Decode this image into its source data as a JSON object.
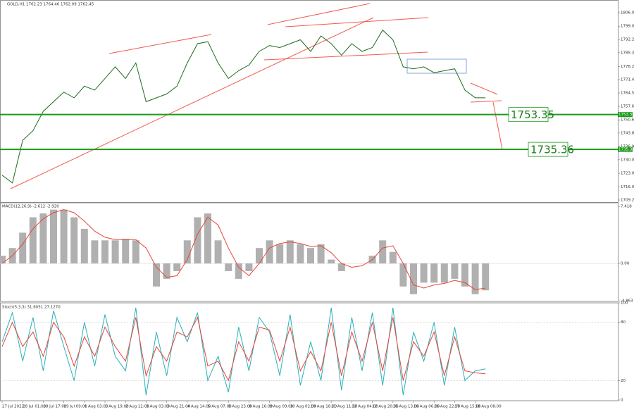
{
  "chart_data": [
    {
      "type": "line",
      "title": "GOLD,H1  1762.23 1764.46 1762.09 1762.45",
      "categories": [
        "27 Jul 2022",
        null,
        "28 Jul 01:00",
        null,
        "28 Jul 17:00",
        null,
        "29 Jul 09:00",
        null,
        "1 Aug 03:00",
        null,
        "1 Aug 19:00",
        null,
        "2 Aug 12:00",
        null,
        "3 Aug 03:00",
        null,
        "3 Aug 21:00",
        null,
        "4 Aug 14:00",
        null,
        "5 Aug 07:00",
        null,
        "5 Aug 23:00",
        null,
        "8 Aug 16:00",
        null,
        "9 Aug 09:00",
        null,
        "10 Aug 02:00",
        null,
        "10 Aug 18:00",
        null,
        "11 Aug 11:00",
        null,
        "12 Aug 04:00",
        null,
        "12 Aug 20:00",
        null,
        "15 Aug 13:00",
        null,
        "16 Aug 06:00",
        null,
        "16 Aug 22:00",
        null,
        "17 Aug 15:00",
        null,
        "18 Aug 08:00",
        null
      ],
      "series": [
        {
          "color": "#1f6b1f",
          "values": [
            1722,
            1718,
            1740,
            1745,
            1755,
            1760,
            1765,
            1762,
            1768,
            1766,
            1772,
            1778,
            1772,
            1780,
            1760,
            1762,
            1764,
            1768,
            1780,
            1790,
            1791,
            1780,
            1772,
            1776,
            1779,
            1786,
            1789,
            1788,
            1790,
            1792,
            1786,
            1794,
            1790,
            1784,
            1790,
            1786,
            1788,
            1797,
            1792,
            1778,
            1777,
            1778,
            1775,
            1776,
            1777,
            1766,
            1762,
            1762
          ]
        }
      ],
      "levels": [
        1753.35,
        1735.36
      ],
      "level_color": "#1a9a1a",
      "ylim": [
        1708.1,
        1812.55
      ],
      "yticks": [
        {
          "value": 1806,
          "label": "1806.00"
        },
        {
          "value": 1799,
          "label": "1799.00"
        },
        {
          "value": 1792.2,
          "label": "1792.20"
        },
        {
          "value": 1785.3,
          "label": "1785.30"
        },
        {
          "value": 1778.2,
          "label": "1778.20"
        },
        {
          "value": 1771.4,
          "label": "1771.40"
        },
        {
          "value": 1764.5,
          "label": "1764.50"
        },
        {
          "value": 1757.6,
          "label": "1757.60"
        },
        {
          "value": 1750.6,
          "label": "1750.60"
        },
        {
          "value": 1743.8,
          "label": "1743.80"
        },
        {
          "value": 1736.9,
          "label": "1736.90"
        },
        {
          "value": 1730,
          "label": "1730.00"
        },
        {
          "value": 1723,
          "label": "1723.00"
        },
        {
          "value": 1716,
          "label": "1716.00"
        },
        {
          "value": 1709.2,
          "label": "1709.20"
        }
      ]
    },
    {
      "type": "macd",
      "title": "MACD(12,26,9) -2.612 -2.920",
      "series": [
        {
          "mark": "bar",
          "color": "#b0b0b0",
          "values": [
            1,
            2,
            4,
            6,
            6.5,
            7,
            7,
            6,
            4.5,
            3,
            3,
            3,
            3.2,
            3,
            0,
            -3,
            -2,
            -1,
            3,
            6,
            6.5,
            3,
            -1,
            -2,
            -1,
            2,
            3,
            2.5,
            3,
            2.5,
            2,
            2.5,
            0.5,
            -1,
            0,
            0,
            1,
            3,
            1.5,
            -3,
            -4,
            -2.5,
            -2.5,
            -2.5,
            -2,
            -3,
            -4,
            -3.5
          ]
        },
        {
          "mark": "line",
          "color": "#e8443a",
          "values": [
            0,
            1,
            2.5,
            4.5,
            5.8,
            6.6,
            7,
            6.6,
            5.5,
            4.2,
            3.4,
            3.1,
            3.1,
            3.1,
            2,
            -0.5,
            -1.8,
            -1.6,
            0.5,
            3.8,
            6,
            5,
            2,
            -0.5,
            -1.6,
            0,
            2,
            2.6,
            2.8,
            2.6,
            2.2,
            2.3,
            1.4,
            0,
            -0.5,
            -0.3,
            0.5,
            2,
            2.3,
            0,
            -2.8,
            -3.2,
            -2.8,
            -2.6,
            -2.2,
            -2.5,
            -3.4,
            -3.2
          ]
        }
      ],
      "ylim": [
        -4.94,
        7.88
      ],
      "yticks": [
        7.418,
        {
          "value": 0,
          "label": "0.00"
        },
        -4.863
      ]
    },
    {
      "type": "stoch",
      "title": "Stoch(5,3,3) 31.6051 27.1270",
      "series": [
        {
          "mark": "line",
          "color": "#2ab0b8",
          "values": [
            60,
            90,
            40,
            85,
            30,
            92,
            55,
            20,
            80,
            35,
            88,
            45,
            30,
            95,
            5,
            70,
            25,
            85,
            60,
            90,
            20,
            45,
            8,
            75,
            30,
            85,
            70,
            25,
            88,
            15,
            60,
            20,
            95,
            10,
            85,
            30,
            90,
            15,
            95,
            5,
            70,
            40,
            80,
            15,
            75,
            20,
            30,
            32
          ]
        },
        {
          "mark": "line",
          "color": "#e8443a",
          "values": [
            55,
            80,
            55,
            70,
            45,
            80,
            65,
            35,
            65,
            45,
            75,
            55,
            40,
            85,
            25,
            55,
            40,
            70,
            65,
            85,
            35,
            40,
            20,
            60,
            40,
            75,
            72,
            40,
            75,
            30,
            50,
            30,
            80,
            25,
            70,
            40,
            80,
            30,
            85,
            20,
            60,
            45,
            70,
            25,
            65,
            30,
            28,
            27
          ]
        }
      ],
      "ylim": [
        0,
        100
      ],
      "yticks": [
        100,
        80,
        20,
        0
      ]
    }
  ]
}
